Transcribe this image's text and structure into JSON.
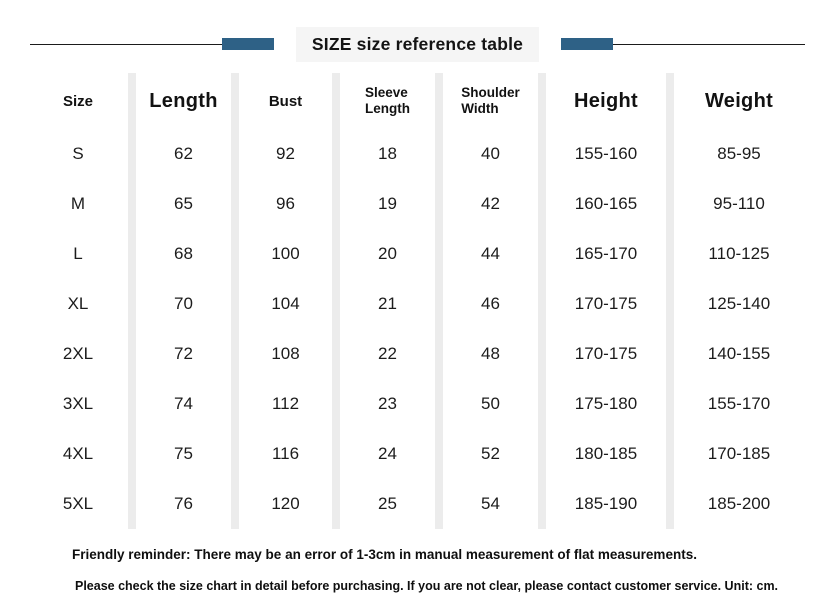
{
  "page": {
    "accent_color": "#2e6186",
    "rule_color": "#1b1b1b"
  },
  "title": "SIZE size reference table",
  "table": {
    "headers": [
      "Size",
      "Length",
      "Bust",
      "Sleeve\nLength",
      "Shoulder\nWidth",
      "Height",
      "Weight"
    ],
    "rows": [
      [
        "S",
        "62",
        "92",
        "18",
        "40",
        "155-160",
        "85-95"
      ],
      [
        "M",
        "65",
        "96",
        "19",
        "42",
        "160-165",
        "95-110"
      ],
      [
        "L",
        "68",
        "100",
        "20",
        "44",
        "165-170",
        "110-125"
      ],
      [
        "XL",
        "70",
        "104",
        "21",
        "46",
        "170-175",
        "125-140"
      ],
      [
        "2XL",
        "72",
        "108",
        "22",
        "48",
        "170-175",
        "140-155"
      ],
      [
        "3XL",
        "74",
        "112",
        "23",
        "50",
        "175-180",
        "155-170"
      ],
      [
        "4XL",
        "75",
        "116",
        "24",
        "52",
        "180-185",
        "170-185"
      ],
      [
        "5XL",
        "76",
        "120",
        "25",
        "54",
        "185-190",
        "185-200"
      ]
    ],
    "unit": "cm"
  },
  "notes": {
    "line1": "Friendly reminder: There may be an error of 1-3cm in manual measurement of flat measurements.",
    "line2": "Please check the size chart in detail before purchasing. If you are not clear, please contact customer service. Unit: cm."
  }
}
